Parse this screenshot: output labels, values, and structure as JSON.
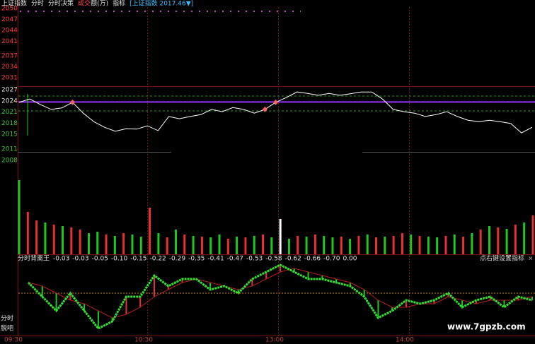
{
  "header": {
    "items": [
      "上证指数",
      "分时",
      "分时决策"
    ],
    "turnover_a": "成交",
    "turnover_b": "额(万)",
    "indicator": "指标",
    "symbol": "[上证指数 2017.46▼]"
  },
  "upper_panel": {
    "ylim": [
      2031,
      2050
    ],
    "yticks": [
      2050,
      2047,
      2044,
      2041,
      2037,
      2034,
      2031
    ]
  },
  "price_panel": {
    "ylim": [
      2008,
      2027
    ],
    "yticks": [
      2027,
      2024,
      2021,
      2018,
      2015,
      2011,
      2008
    ],
    "color": "#ffffff",
    "values": [
      2023.6,
      2024.5,
      2023.0,
      2021.7,
      2022.1,
      2023.6,
      2020.7,
      2018.4,
      2016.9,
      2015.8,
      2016.5,
      2016.4,
      2017.3,
      2016.0,
      2019.8,
      2019.2,
      2019.8,
      2020.3,
      2021.7,
      2021.1,
      2022.2,
      2021.7,
      2020.7,
      2021.7,
      2023.6,
      2024.9,
      2026.4,
      2026.0,
      2025.5,
      2026.0,
      2025.5,
      2025.9,
      2026.4,
      2026.4,
      2024.5,
      2021.7,
      2021.1,
      2020.7,
      2019.8,
      2020.3,
      2021.1,
      2019.8,
      2018.8,
      2018.4,
      2018.8,
      2018.4,
      2017.9,
      2015.4,
      2016.9
    ],
    "reference_lines": [
      {
        "value": 2023.7,
        "color": "#9933ff",
        "dashed": false
      },
      {
        "value": 2025.3,
        "color": "#2a9a2a",
        "dashed": true
      },
      {
        "value": 2021.3,
        "color": "#2a9a2a",
        "dashed": true
      }
    ],
    "signals": [
      5,
      23,
      24
    ],
    "signal_color": "#ff6060"
  },
  "volume_panel": {
    "ylim": [
      0,
      120
    ],
    "values": [
      105,
      60,
      48,
      45,
      42,
      40,
      38,
      35,
      30,
      32,
      28,
      26,
      30,
      28,
      25,
      66,
      30,
      24,
      35,
      28,
      26,
      25,
      24,
      28,
      22,
      25,
      24,
      26,
      28,
      24,
      50,
      22,
      26,
      25,
      28,
      26,
      24,
      25,
      22,
      26,
      28,
      24,
      25,
      26,
      30,
      28,
      26,
      25,
      24,
      26,
      28,
      25,
      30,
      35,
      40,
      38,
      36,
      42,
      45,
      55
    ],
    "colors": [
      "#1ec81e",
      "#e83030",
      "#e83030",
      "#1ec81e",
      "#e83030",
      "#1ec81e",
      "#e83030",
      "#e83030",
      "#1ec81e",
      "#1ec81e",
      "#e83030",
      "#1ec81e",
      "#e83030",
      "#1ec81e",
      "#1ec81e",
      "#e83030",
      "#1ec81e",
      "#e83030",
      "#1ec81e",
      "#e83030",
      "#1ec81e",
      "#e83030",
      "#1ec81e",
      "#1ec81e",
      "#e83030",
      "#1ec81e",
      "#e83030",
      "#1ec81e",
      "#e83030",
      "#1ec81e",
      "#ffffff",
      "#1ec81e",
      "#e83030",
      "#1ec81e",
      "#e83030",
      "#1ec81e",
      "#1ec81e",
      "#e83030",
      "#1ec81e",
      "#e83030",
      "#1ec81e",
      "#e83030",
      "#1ec81e",
      "#e83030",
      "#e83030",
      "#1ec81e",
      "#e83030",
      "#1ec81e",
      "#1ec81e",
      "#e83030",
      "#1ec81e",
      "#e83030",
      "#1ec81e",
      "#e83030",
      "#1ec81e",
      "#e83030",
      "#1ec81e",
      "#e83030",
      "#1ec81e",
      "#e83030"
    ]
  },
  "indicator_panel": {
    "title": "分时背离王",
    "header_values": [
      "-0.03",
      "-0.03",
      "-0.05",
      "-0.10",
      "-0.15",
      "-0.22",
      "-0.29",
      "-0.35",
      "-0.41",
      "-0.47",
      "-0.53",
      "-0.58",
      "-0.62",
      "-0.66",
      "-0.70",
      "0.00"
    ],
    "note": "点右键设置指标",
    "close": "×",
    "ylim": [
      -1.2,
      0.9
    ],
    "zero": 0,
    "fast": [
      0.3,
      -0.1,
      -0.5,
      0,
      -0.5,
      -1.0,
      -0.8,
      -0.1,
      -0.1,
      0.5,
      0.2,
      0.4,
      0.4,
      0.1,
      0.2,
      0,
      0.4,
      0.6,
      0.8,
      0.6,
      0.4,
      0.4,
      0.3,
      0.2,
      -0.1,
      -0.7,
      -0.5,
      -0.2,
      -0.3,
      -0.2,
      0,
      -0.4,
      -0.2,
      -0.1,
      -0.4,
      -0.1,
      -0.2
    ],
    "slow": [
      0.3,
      0.2,
      0,
      -0.2,
      -0.3,
      -0.5,
      -0.7,
      -0.6,
      -0.4,
      -0.1,
      0.1,
      0.3,
      0.4,
      0.3,
      0.2,
      0.1,
      0.2,
      0.4,
      0.6,
      0.7,
      0.6,
      0.5,
      0.4,
      0.3,
      0.1,
      -0.2,
      -0.4,
      -0.4,
      -0.3,
      -0.3,
      -0.1,
      -0.2,
      -0.3,
      -0.2,
      -0.2,
      -0.2,
      -0.1
    ]
  },
  "time_axis": {
    "labels": [
      "09:30",
      "10:30",
      "13:00",
      "14:00"
    ]
  },
  "side_labels": [
    "分时",
    "脱吧"
  ],
  "watermark": "www.7gpzb.com"
}
